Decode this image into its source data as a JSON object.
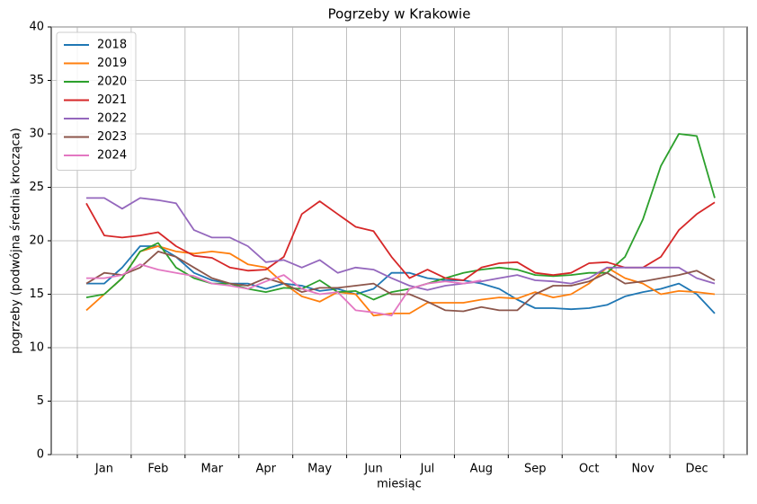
{
  "chart_data": {
    "type": "line",
    "title": "Pogrzeby w Krakowie",
    "xlabel": "miesiąc",
    "ylabel": "pogrzeby (podwójna średnia krocząca)",
    "categories": [
      null,
      "Jan",
      null,
      null,
      "Feb",
      null,
      null,
      "Mar",
      null,
      null,
      "Apr",
      null,
      null,
      "May",
      null,
      null,
      "Jun",
      null,
      null,
      "Jul",
      null,
      null,
      "Aug",
      null,
      null,
      "Sep",
      null,
      null,
      "Oct",
      null,
      null,
      "Nov",
      null,
      null,
      "Dec",
      null
    ],
    "ylim": [
      0,
      40
    ],
    "yticks": [
      0,
      5,
      10,
      15,
      20,
      25,
      30,
      35,
      40
    ],
    "grid": true,
    "legend": "upper left",
    "series": [
      {
        "name": "2018",
        "color": "#1f77b4",
        "values": [
          16,
          16,
          17.5,
          19.5,
          19.5,
          18.5,
          17,
          16.3,
          16,
          16,
          15.5,
          16,
          15.8,
          15.3,
          15.5,
          15,
          15.5,
          17,
          17,
          16.5,
          16.3,
          16.3,
          16,
          15.5,
          14.5,
          13.7,
          13.7,
          13.6,
          13.7,
          14,
          14.8,
          15.2,
          15.5,
          16,
          15,
          13.2
        ]
      },
      {
        "name": "2019",
        "color": "#ff7f0e",
        "values": [
          13.5,
          15,
          16.5,
          19,
          19.5,
          19,
          18.8,
          19,
          18.8,
          17.8,
          17.5,
          16,
          14.8,
          14.3,
          15.2,
          15,
          13,
          13.2,
          13.2,
          14.2,
          14.2,
          14.2,
          14.5,
          14.7,
          14.6,
          15.2,
          14.7,
          15,
          16,
          17.5,
          16.5,
          16,
          15,
          15.3,
          15.2,
          15
        ]
      },
      {
        "name": "2020",
        "color": "#2ca02c",
        "values": [
          14.7,
          15,
          16.5,
          19,
          19.8,
          17.5,
          16.5,
          16,
          16,
          15.5,
          15.2,
          15.6,
          15.5,
          16.3,
          15.2,
          15.3,
          14.5,
          15.2,
          15.5,
          16,
          16.5,
          17,
          17.3,
          17.5,
          17.3,
          16.8,
          16.7,
          16.8,
          17,
          17,
          18.5,
          22,
          27,
          30,
          29.8,
          24
        ]
      },
      {
        "name": "2021",
        "color": "#d62728",
        "values": [
          23.5,
          20.5,
          20.3,
          20.5,
          20.8,
          19.5,
          18.6,
          18.4,
          17.5,
          17.2,
          17.3,
          18.5,
          22.5,
          23.7,
          22.5,
          21.3,
          20.9,
          18.5,
          16.5,
          17.3,
          16.5,
          16.3,
          17.5,
          17.9,
          18,
          17,
          16.8,
          17,
          17.9,
          18,
          17.5,
          17.5,
          18.5,
          21,
          22.5,
          23.6
        ]
      },
      {
        "name": "2022",
        "color": "#9467bd",
        "values": [
          24,
          24,
          23,
          24,
          23.8,
          23.5,
          21,
          20.3,
          20.3,
          19.5,
          18,
          18.2,
          17.5,
          18.2,
          17,
          17.5,
          17.3,
          16.5,
          15.8,
          15.4,
          15.8,
          16,
          16.2,
          16.5,
          16.8,
          16.3,
          16.2,
          16,
          16.5,
          17.5,
          17.5,
          17.5,
          17.5,
          17.5,
          16.5,
          16
        ]
      },
      {
        "name": "2023",
        "color": "#8c564b",
        "values": [
          16,
          17,
          16.8,
          17.5,
          19,
          18.5,
          17.5,
          16.5,
          16,
          15.8,
          16.5,
          16,
          15.2,
          15.6,
          15.6,
          15.8,
          16,
          15,
          15,
          14.3,
          13.5,
          13.4,
          13.8,
          13.5,
          13.5,
          15,
          15.8,
          15.8,
          16.2,
          17,
          16,
          16.2,
          16.5,
          16.8,
          17.2,
          16.3
        ]
      },
      {
        "name": "2024",
        "color": "#e377c2",
        "values": [
          16.5,
          16.5,
          16.8,
          17.8,
          17.3,
          17,
          16.7,
          16,
          15.8,
          15.5,
          16.2,
          16.8,
          15.5,
          15,
          15.2,
          13.5,
          13.3,
          13,
          15.5,
          16,
          16.2,
          16,
          16.3,
          null,
          null,
          null,
          null,
          null,
          null,
          null,
          null,
          null,
          null,
          null,
          null,
          null
        ]
      }
    ]
  }
}
